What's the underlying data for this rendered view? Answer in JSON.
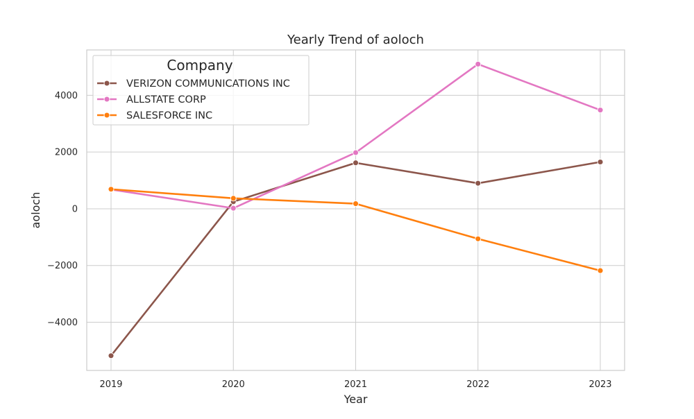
{
  "chart_data": {
    "type": "line",
    "title": "Yearly Trend of aoloch",
    "xlabel": "Year",
    "ylabel": "aoloch",
    "x": [
      "2019",
      "2020",
      "2021",
      "2022",
      "2023"
    ],
    "ylim": [
      -5700,
      5600
    ],
    "yticks": [
      -4000,
      -2000,
      0,
      2000,
      4000
    ],
    "ytick_labels": [
      "−4000",
      "−2000",
      "0",
      "2000",
      "4000"
    ],
    "grid": true,
    "legend": {
      "title": "Company",
      "placement": "top-left"
    },
    "series": [
      {
        "name": "VERIZON COMMUNICATIONS INC",
        "color": "#8c564b",
        "values": [
          -5180,
          250,
          1620,
          900,
          1650
        ]
      },
      {
        "name": "ALLSTATE CORP",
        "color": "#e377c2",
        "values": [
          680,
          20,
          1980,
          5100,
          3480
        ]
      },
      {
        "name": "SALESFORCE INC",
        "color": "#ff7f0e",
        "values": [
          690,
          370,
          180,
          -1060,
          -2180
        ]
      }
    ]
  }
}
